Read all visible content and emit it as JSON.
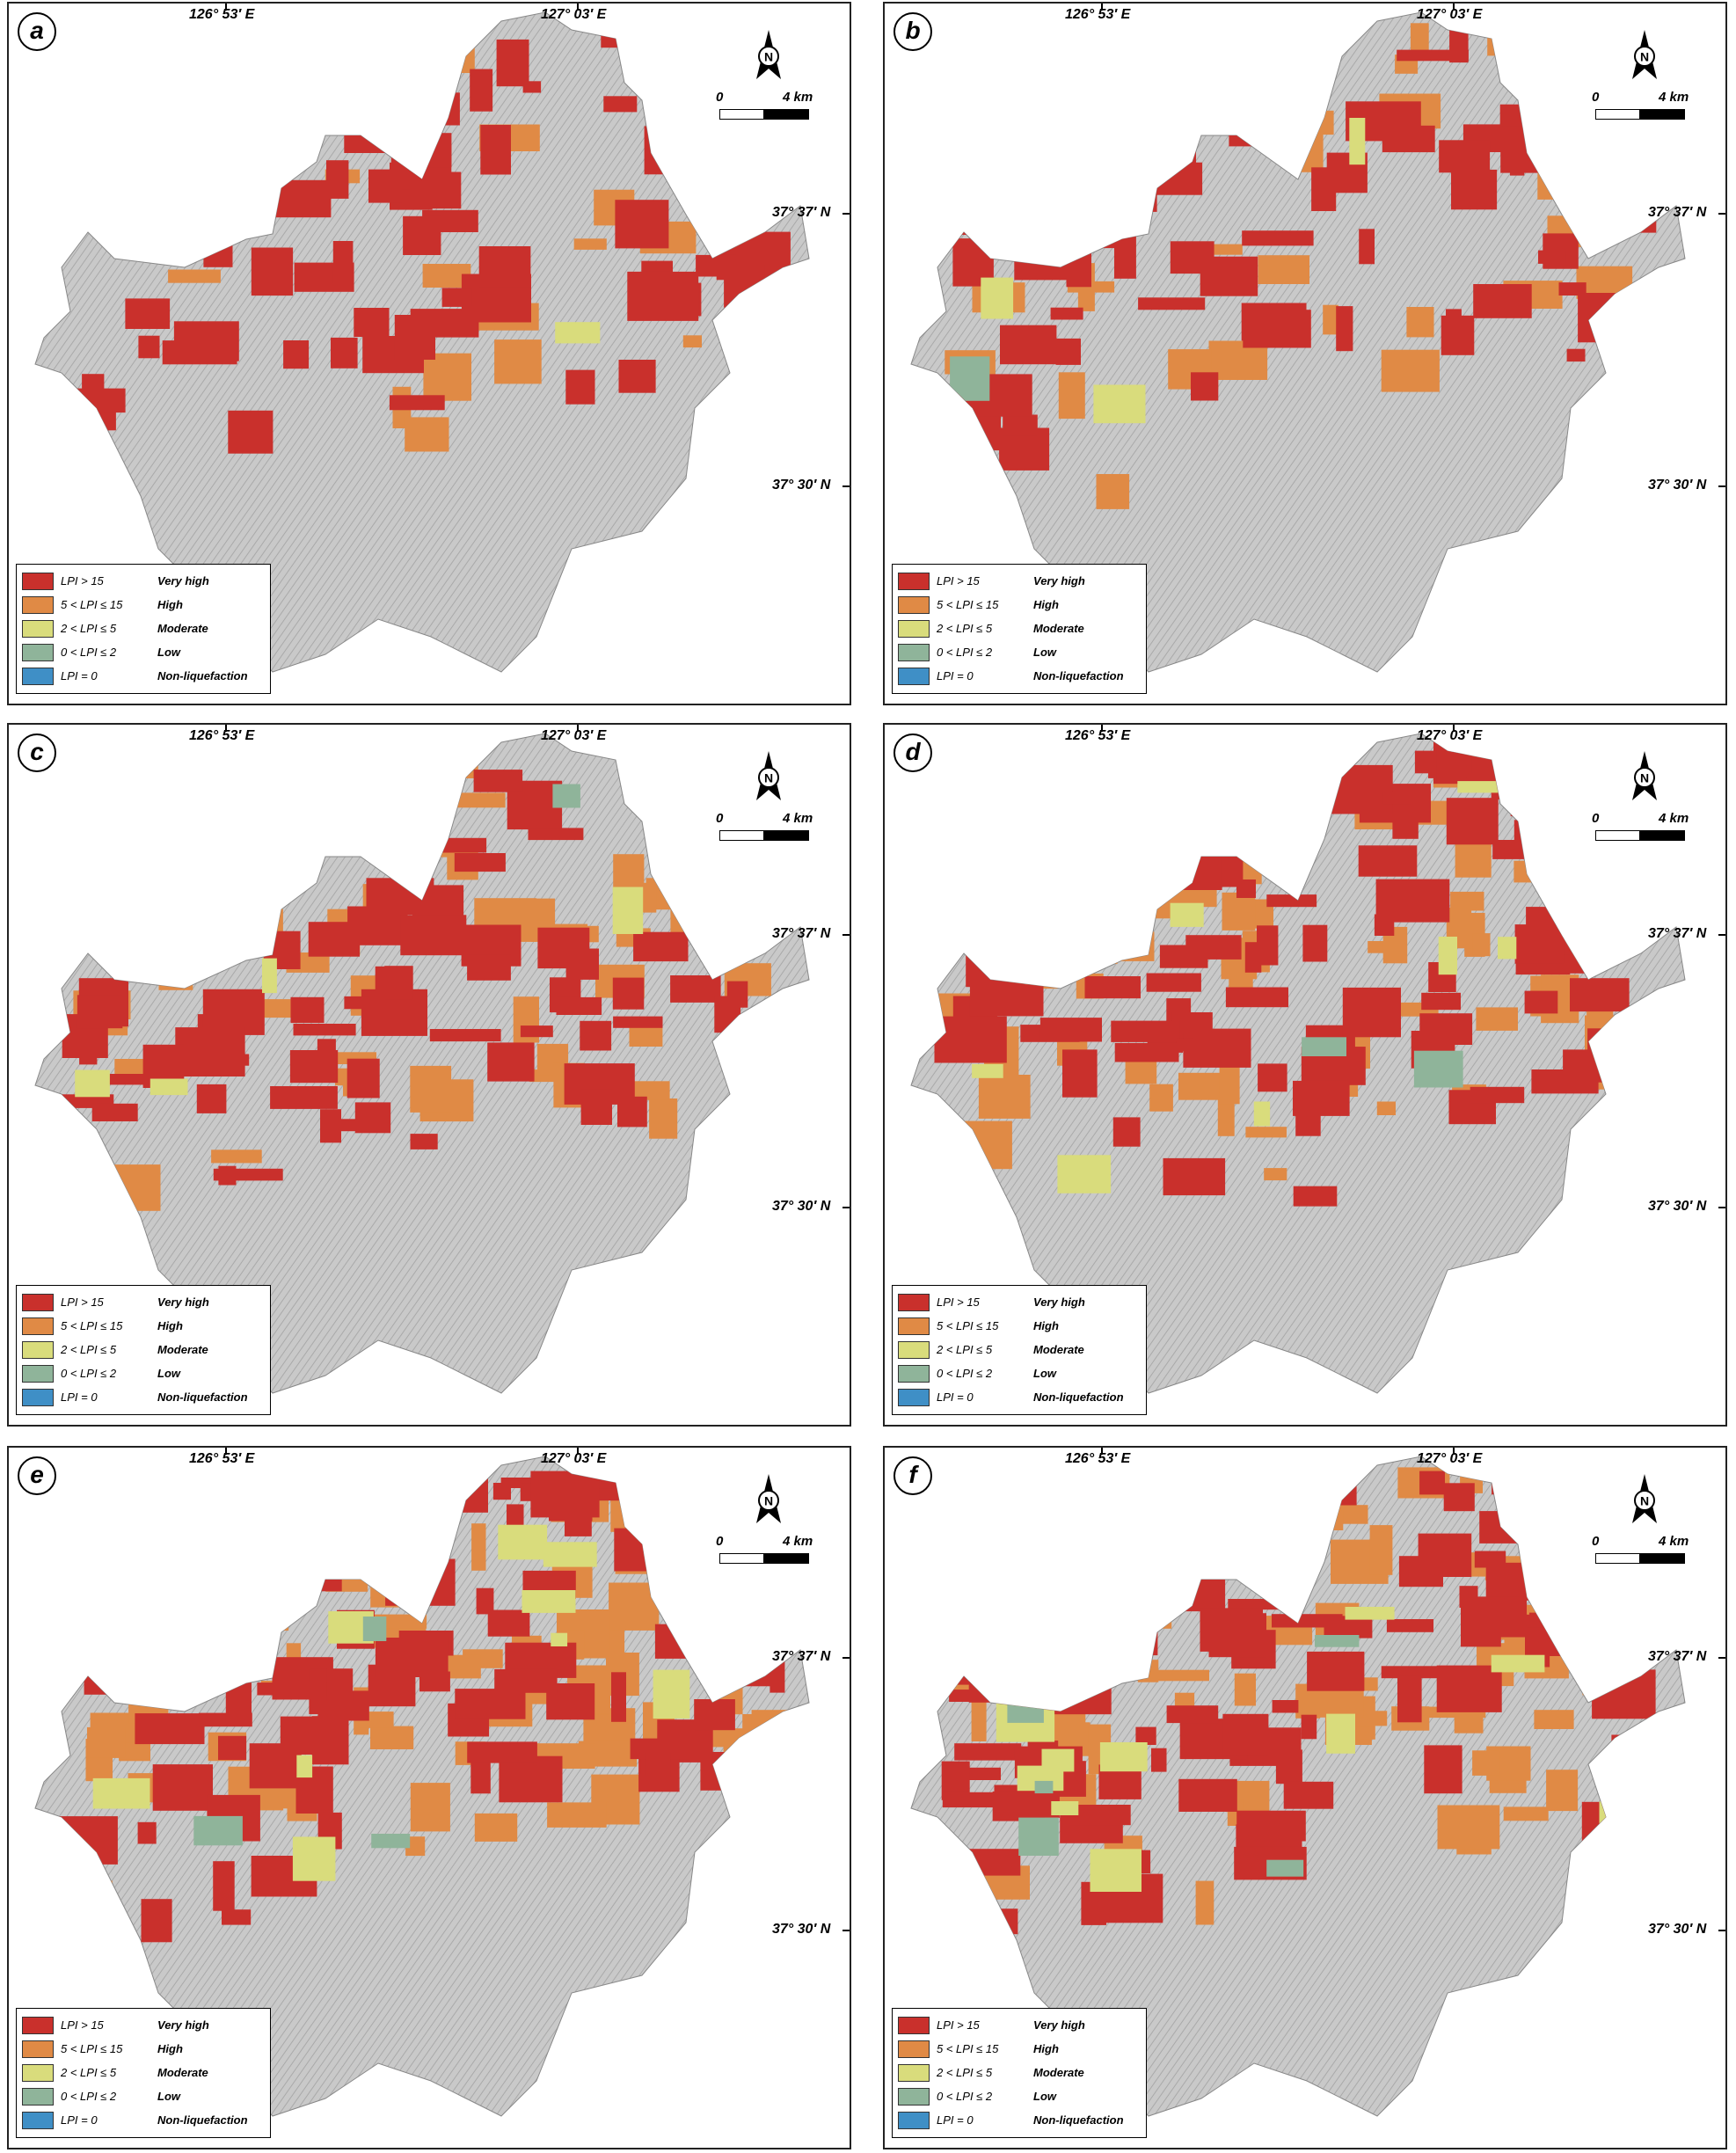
{
  "coordinates": {
    "lon_west": "126° 53′ E",
    "lon_east": "127° 03′ E",
    "lat_north": "37° 37′ N",
    "lat_south": "37° 30′ N"
  },
  "scale_bar": {
    "start": "0",
    "end": "4 km"
  },
  "north_label": "N",
  "legend": [
    {
      "range": "LPI > 15",
      "label": "Very high",
      "color": "#c9302c"
    },
    {
      "range": "5 < LPI ≤ 15",
      "label": "High",
      "color": "#e08a45"
    },
    {
      "range": "2 < LPI ≤ 5",
      "label": "Moderate",
      "color": "#d9dc7c"
    },
    {
      "range": "0 < LPI ≤ 2",
      "label": "Low",
      "color": "#8fb49a"
    },
    {
      "range": "LPI = 0",
      "label": "Non-liquefaction",
      "color": "#3f8fc6"
    }
  ],
  "panels": [
    {
      "letter": "a",
      "very_high_share": 0.3,
      "high_share": 0.1,
      "moderate_share": 0.01,
      "low_share": 0.0
    },
    {
      "letter": "b",
      "very_high_share": 0.32,
      "high_share": 0.16,
      "moderate_share": 0.02,
      "low_share": 0.005
    },
    {
      "letter": "c",
      "very_high_share": 0.36,
      "high_share": 0.26,
      "moderate_share": 0.03,
      "low_share": 0.01
    },
    {
      "letter": "d",
      "very_high_share": 0.38,
      "high_share": 0.3,
      "moderate_share": 0.04,
      "low_share": 0.015
    },
    {
      "letter": "e",
      "very_high_share": 0.4,
      "high_share": 0.34,
      "moderate_share": 0.05,
      "low_share": 0.02
    },
    {
      "letter": "f",
      "very_high_share": 0.46,
      "high_share": 0.3,
      "moderate_share": 0.06,
      "low_share": 0.03
    }
  ]
}
